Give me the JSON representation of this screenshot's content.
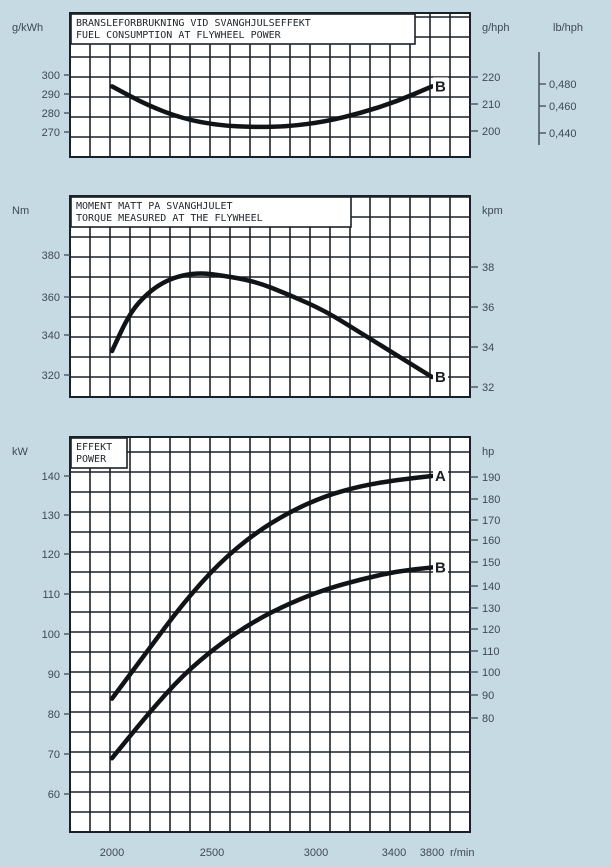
{
  "chart_data": [
    {
      "type": "line",
      "title_lines": [
        "BRANSLEFORBRUKNING VID SVANGHJULSEFFEKT",
        "FUEL CONSUMPTION AT FLYWHEEL POWER"
      ],
      "xlabel": "r/min",
      "xlim": [
        2000,
        3800
      ],
      "y_units": [
        "g/kWh",
        "g/hph",
        "lb/hph"
      ],
      "left_ticks": [
        "300",
        "290",
        "280",
        "270"
      ],
      "right_ticks": [
        "220",
        "210",
        "200"
      ],
      "far_right_ticks": [
        "0,480",
        "0,460",
        "0,440"
      ],
      "ylim": [
        262,
        306
      ],
      "series": [
        {
          "name": "B",
          "x": [
            2000,
            2200,
            2400,
            2600,
            2800,
            3000,
            3200,
            3400,
            3600,
            3800
          ],
          "y": [
            294,
            284,
            277,
            273.5,
            272.5,
            273,
            275.5,
            280,
            286,
            294
          ]
        }
      ]
    },
    {
      "type": "line",
      "title_lines": [
        "MOMENT MATT PA SVANGHJULET",
        "TORQUE MEASURED AT THE FLYWHEEL"
      ],
      "xlabel": "r/min",
      "xlim": [
        2000,
        3800
      ],
      "y_units": [
        "Nm",
        "kpm"
      ],
      "left_ticks": [
        "380",
        "360",
        "340",
        "320"
      ],
      "right_ticks": [
        "38",
        "36",
        "34",
        "32"
      ],
      "ylim": [
        312,
        392
      ],
      "series": [
        {
          "name": "B",
          "x": [
            2000,
            2100,
            2200,
            2300,
            2400,
            2500,
            2600,
            2800,
            3000,
            3200,
            3400,
            3600,
            3800
          ],
          "y": [
            332,
            351,
            361,
            367,
            370,
            371,
            370,
            367,
            360,
            352,
            341,
            330,
            319
          ]
        }
      ]
    },
    {
      "type": "line",
      "title_lines": [
        "EFFEKT",
        "POWER"
      ],
      "xlabel": "r/min",
      "x_ticks": [
        "2000",
        "2500",
        "3000",
        "3400",
        "3800"
      ],
      "xlim": [
        2000,
        3800
      ],
      "y_units": [
        "kW",
        "hp"
      ],
      "left_ticks": [
        "140",
        "130",
        "120",
        "110",
        "100",
        "90",
        "80",
        "70",
        "60"
      ],
      "right_ticks": [
        "190",
        "180",
        "170",
        "160",
        "150",
        "140",
        "130",
        "120",
        "110",
        "100",
        "90",
        "80"
      ],
      "ylim": [
        52,
        146
      ],
      "series": [
        {
          "name": "A",
          "x": [
            2000,
            2200,
            2400,
            2600,
            2800,
            3000,
            3200,
            3400,
            3600,
            3800
          ],
          "y": [
            84,
            96,
            108,
            118,
            125.5,
            131,
            135,
            137.5,
            139,
            140
          ]
        },
        {
          "name": "B",
          "x": [
            2000,
            2200,
            2400,
            2600,
            2800,
            3000,
            3200,
            3400,
            3600,
            3800
          ],
          "y": [
            69,
            80,
            90,
            97.5,
            103.5,
            108,
            111.5,
            114,
            116,
            117
          ]
        }
      ]
    }
  ]
}
